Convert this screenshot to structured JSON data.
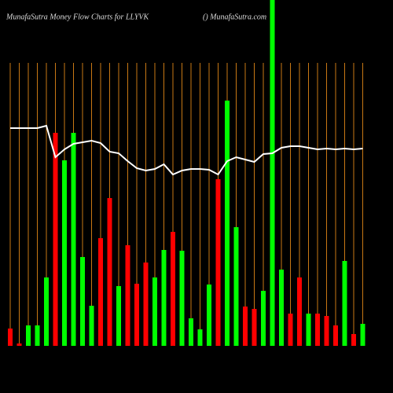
{
  "chart_data": {
    "type": "bar",
    "title": "MunafaSutra  Money Flow  Charts for LLYVK",
    "subtitle": "() MunafaSutra.com",
    "categories": [
      null,
      null,
      null,
      null,
      null,
      null,
      null,
      null,
      null,
      null,
      null,
      null,
      null,
      null,
      null,
      null,
      null,
      null,
      null,
      null,
      null,
      null,
      null,
      null,
      null,
      null,
      null,
      null,
      null,
      null,
      null,
      null,
      null,
      null,
      null,
      null,
      null,
      null,
      null,
      null
    ],
    "ylim": [
      0,
      440
    ],
    "values": [
      22,
      3,
      26,
      26,
      87,
      271,
      236,
      271,
      113,
      51,
      137,
      188,
      76,
      128,
      79,
      106,
      87,
      122,
      145,
      121,
      35,
      21,
      78,
      212,
      312,
      151,
      50,
      47,
      70,
      440,
      97,
      41,
      87,
      41,
      41,
      38,
      26,
      108,
      15,
      28
    ],
    "bar_colors": [
      "#ff0000",
      "#ff0000",
      "#00ff00",
      "#00ff00",
      "#00ff00",
      "#ff0000",
      "#00ff00",
      "#00ff00",
      "#00ff00",
      "#00ff00",
      "#ff0000",
      "#ff0000",
      "#00ff00",
      "#ff0000",
      "#ff0000",
      "#ff0000",
      "#00ff00",
      "#00ff00",
      "#ff0000",
      "#00ff00",
      "#00ff00",
      "#00ff00",
      "#00ff00",
      "#ff0000",
      "#00ff00",
      "#00ff00",
      "#ff0000",
      "#ff0000",
      "#00ff00",
      "#00ff00",
      "#00ff00",
      "#ff0000",
      "#ff0000",
      "#00ff00",
      "#ff0000",
      "#ff0000",
      "#ff0000",
      "#00ff00",
      "#ff0000",
      "#00ff00"
    ],
    "line": {
      "color": "#ffffff",
      "values": [
        277,
        277,
        277,
        277,
        280,
        240,
        250,
        257,
        259,
        261,
        258,
        247,
        245,
        235,
        226,
        223,
        225,
        231,
        218,
        223,
        225,
        225,
        224,
        218,
        235,
        240,
        237,
        234,
        244,
        245,
        252,
        254,
        254,
        252,
        250,
        251,
        250,
        251,
        250,
        251
      ]
    },
    "grid_color": "#c87814"
  }
}
